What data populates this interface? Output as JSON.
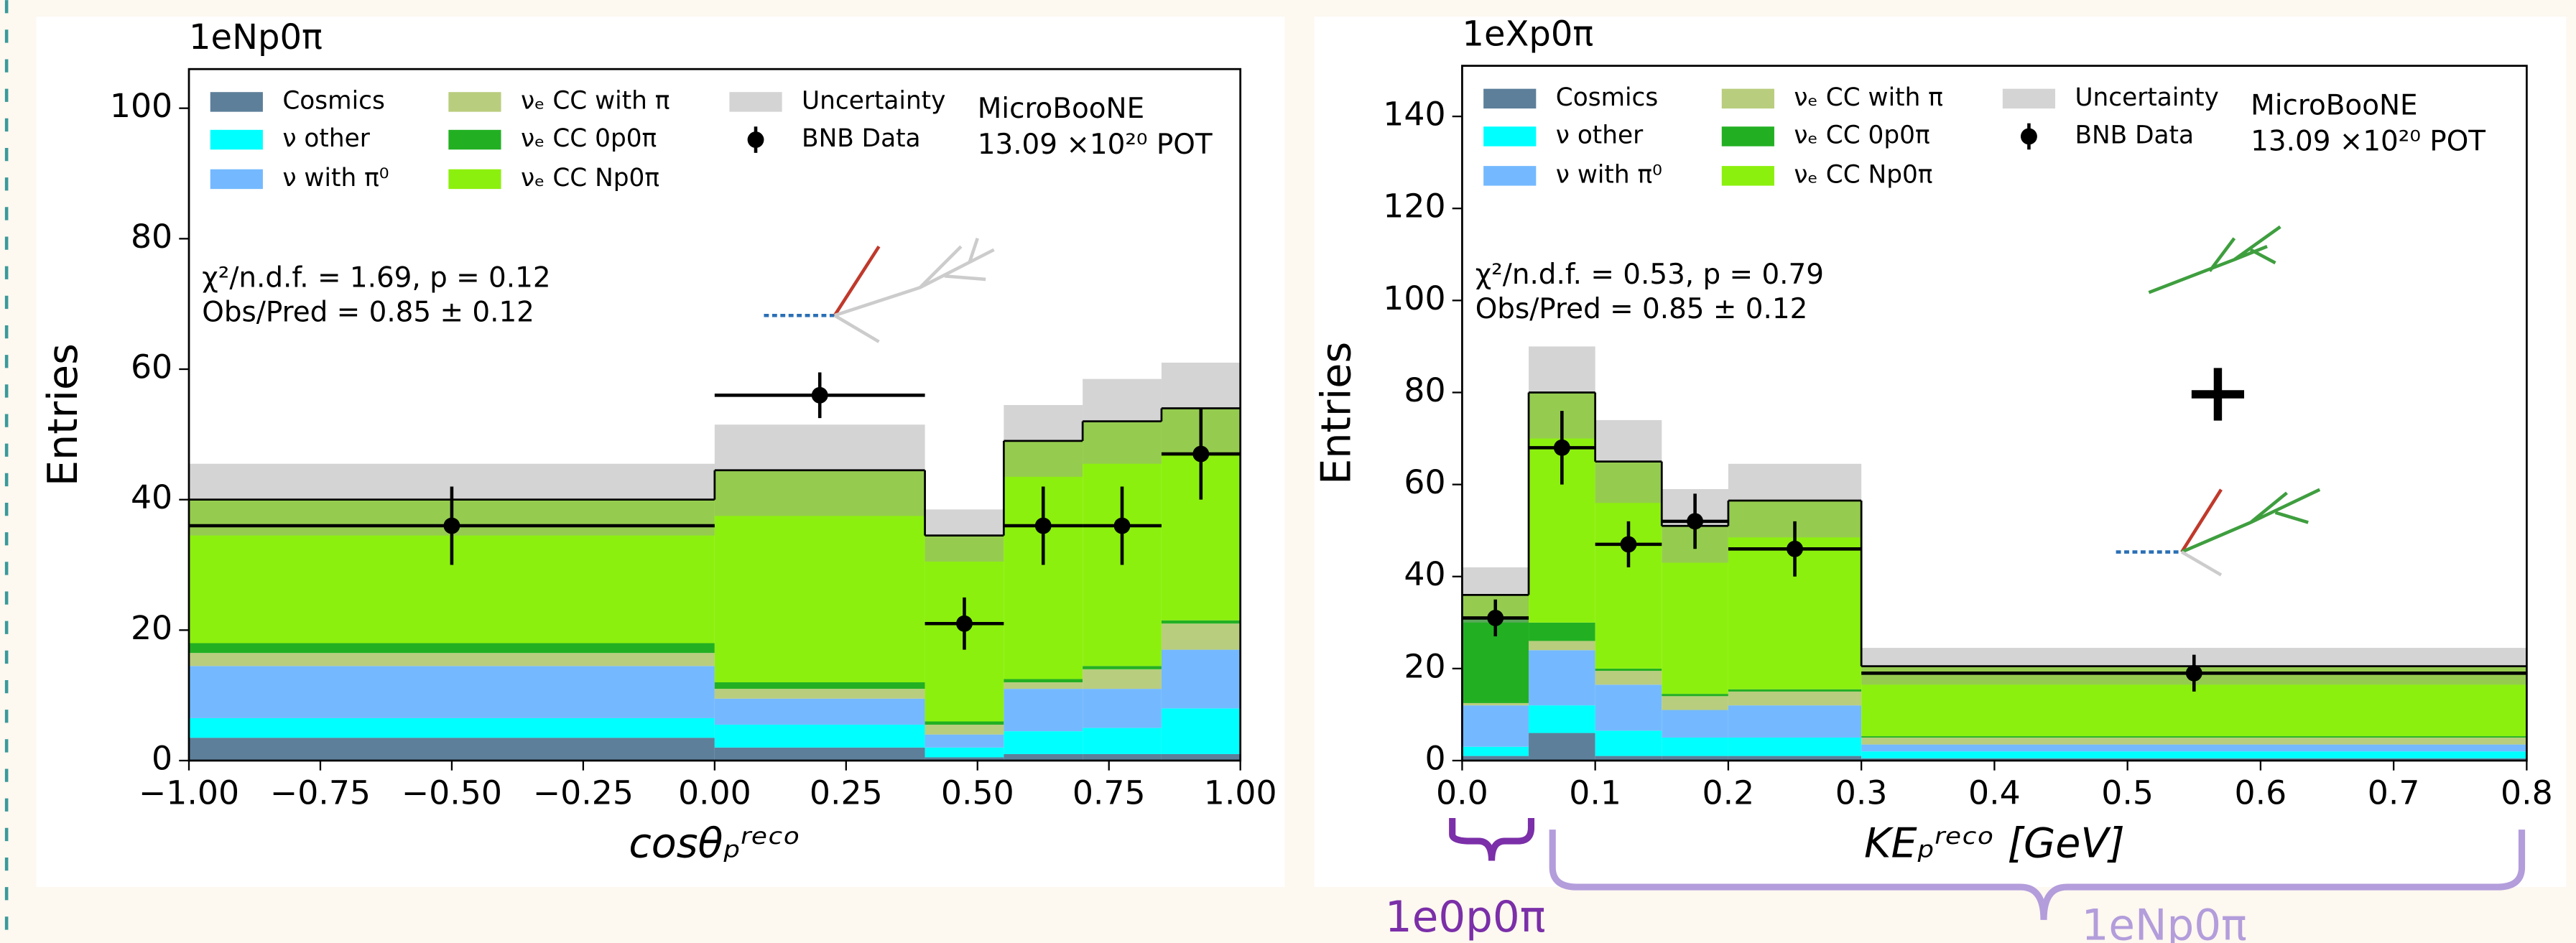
{
  "chart_data": [
    {
      "type": "stacked-histogram",
      "title": "1eNp0π",
      "xlabel": "cosθₚʳᵉᶜᵒ",
      "ylabel": "Entries",
      "experiment": "MicroBooNE",
      "exposure": "13.09 ×10²⁰ POT",
      "stat_text": [
        "χ²/n.d.f. = 1.69, p = 0.12",
        "Obs/Pred = 0.85 ± 0.12"
      ],
      "bins": [
        -1.0,
        0.0,
        0.4,
        0.55,
        0.7,
        0.85,
        1.0
      ],
      "series": [
        {
          "name": "Cosmics",
          "color": "#5d7f9a",
          "values": [
            3.5,
            2,
            0.5,
            1,
            1,
            1
          ]
        },
        {
          "name": "ν other",
          "color": "#00ffff",
          "values": [
            3,
            3.5,
            1.5,
            3.5,
            4,
            7
          ]
        },
        {
          "name": "ν with π⁰",
          "color": "#74b9ff",
          "values": [
            8,
            4,
            2,
            6.5,
            6,
            9
          ]
        },
        {
          "name": "νₑ CC with π",
          "color": "#b9cd7e",
          "values": [
            2,
            1.5,
            1.5,
            1,
            3,
            4
          ]
        },
        {
          "name": "νₑ CC 0p0π",
          "color": "#22b022",
          "values": [
            1.5,
            1,
            0.5,
            0.5,
            0.5,
            0.5
          ]
        },
        {
          "name": "νₑ CC Np0π",
          "color": "#8cf00e",
          "values": [
            22,
            32.5,
            28.5,
            36.5,
            37.5,
            32.5
          ]
        }
      ],
      "uncertainty": {
        "name": "Uncertainty",
        "color": "#a0a0a0",
        "values": [
          5.5,
          7,
          4,
          5.5,
          6.5,
          7
        ]
      },
      "data": {
        "name": "BNB Data",
        "color": "#000000",
        "x": [
          -0.5,
          0.2,
          0.475,
          0.625,
          0.775,
          0.925
        ],
        "xerr": [
          0.5,
          0.2,
          0.075,
          0.075,
          0.075,
          0.075
        ],
        "values": [
          36,
          56,
          21,
          36,
          36,
          47
        ],
        "yerr": [
          6,
          3.5,
          4,
          6,
          6,
          7
        ]
      },
      "xlim": [
        -1.0,
        1.0
      ],
      "xticks": [
        {
          "value": -1.0,
          "label": "−1.00"
        },
        {
          "value": -0.75,
          "label": "−0.75"
        },
        {
          "value": -0.5,
          "label": "−0.50"
        },
        {
          "value": -0.25,
          "label": "−0.25"
        },
        {
          "value": 0,
          "label": "0.00"
        },
        {
          "value": 0.25,
          "label": "0.25"
        },
        {
          "value": 0.5,
          "label": "0.50"
        },
        {
          "value": 0.75,
          "label": "0.75"
        },
        {
          "value": 1.0,
          "label": "1.00"
        }
      ],
      "ylim": [
        0,
        106
      ],
      "yticks": [
        0,
        20,
        40,
        60,
        80,
        100
      ]
    },
    {
      "type": "stacked-histogram",
      "title": "1eXp0π",
      "xlabel": "KEₚʳᵉᶜᵒ [GeV]",
      "ylabel": "Entries",
      "experiment": "MicroBooNE",
      "exposure": "13.09 ×10²⁰ POT",
      "stat_text": [
        "χ²/n.d.f. = 0.53, p = 0.79",
        "Obs/Pred = 0.85 ± 0.12"
      ],
      "bins": [
        0.0,
        0.05,
        0.1,
        0.15,
        0.2,
        0.3,
        0.8
      ],
      "series": [
        {
          "name": "Cosmics",
          "color": "#5d7f9a",
          "values": [
            1,
            6,
            1,
            1,
            1,
            0.5
          ]
        },
        {
          "name": "ν other",
          "color": "#00ffff",
          "values": [
            2,
            6,
            5.5,
            4,
            4,
            1.5
          ]
        },
        {
          "name": "ν with π⁰",
          "color": "#74b9ff",
          "values": [
            9,
            12,
            10,
            6,
            7,
            1.5
          ]
        },
        {
          "name": "νₑ CC with π",
          "color": "#b9cd7e",
          "values": [
            0.5,
            2,
            3,
            3,
            3,
            1.5
          ]
        },
        {
          "name": "νₑ CC 0p0π",
          "color": "#22b022",
          "values": [
            18.5,
            4,
            0.5,
            0.5,
            0.5,
            0.3
          ]
        },
        {
          "name": "νₑ CC Np0π",
          "color": "#8cf00e",
          "values": [
            5,
            50,
            45,
            36.5,
            41,
            15.2
          ]
        }
      ],
      "uncertainty": {
        "name": "Uncertainty",
        "color": "#a0a0a0",
        "values": [
          6,
          10,
          9,
          8,
          8,
          4
        ]
      },
      "data": {
        "name": "BNB Data",
        "color": "#000000",
        "x": [
          0.025,
          0.075,
          0.125,
          0.175,
          0.25,
          0.55
        ],
        "xerr": [
          0.025,
          0.025,
          0.025,
          0.025,
          0.05,
          0.25
        ],
        "values": [
          31,
          68,
          47,
          52,
          46,
          19
        ],
        "yerr": [
          4,
          8,
          5,
          6,
          6,
          4
        ]
      },
      "xlim": [
        0.0,
        0.8
      ],
      "xticks": [
        {
          "value": 0,
          "label": "0.0"
        },
        0.1,
        0.2,
        0.3,
        0.4,
        0.5,
        0.6,
        0.7,
        0.8
      ],
      "ylim": [
        0,
        151
      ],
      "yticks": [
        0,
        20,
        40,
        60,
        80,
        100,
        120,
        140
      ],
      "region_labels": [
        "1e0p0π",
        "1eNp0π"
      ]
    }
  ]
}
